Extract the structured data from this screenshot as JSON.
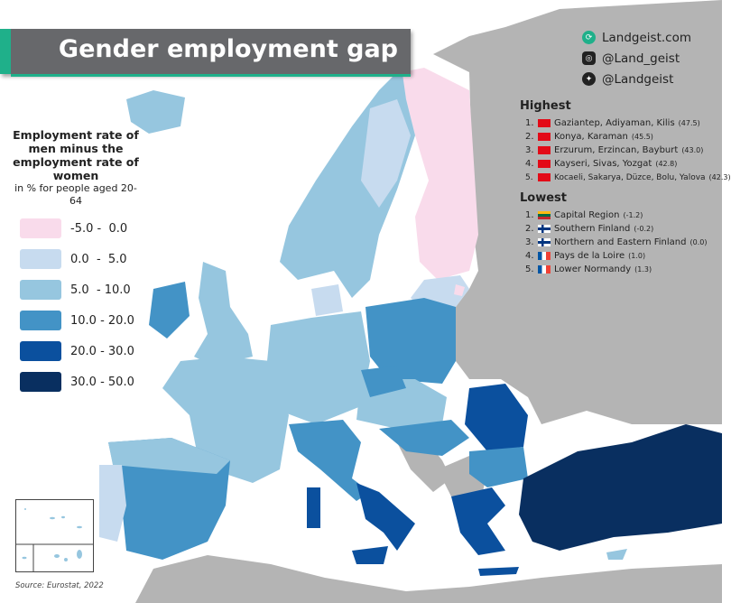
{
  "title": "Gender employment gap",
  "social": [
    {
      "icon": "globe-icon",
      "text": "Landgeist.com"
    },
    {
      "icon": "instagram-icon",
      "text": "@Land_geist"
    },
    {
      "icon": "twitter-icon",
      "text": "@Landgeist"
    }
  ],
  "legend": {
    "title": "Employment rate of men minus the employment rate of women",
    "subtitle": "in % for people aged 20-64",
    "items": [
      {
        "label": "-5.0 -  0.0",
        "color": "#f9dbeb"
      },
      {
        "label": "0.0  -  5.0",
        "color": "#c7dbef"
      },
      {
        "label": "5.0  - 10.0",
        "color": "#96c6df"
      },
      {
        "label": "10.0 - 20.0",
        "color": "#4393c6"
      },
      {
        "label": "20.0 - 30.0",
        "color": "#0b509e"
      },
      {
        "label": "30.0 - 50.0",
        "color": "#092f60"
      }
    ]
  },
  "no_data_color": "#b4b4b4",
  "highest": {
    "title": "Highest",
    "items": [
      {
        "rank": "1.",
        "flag": "turkey",
        "name": "Gaziantep, Adiyaman, Kilis",
        "value": "(47.5)"
      },
      {
        "rank": "2.",
        "flag": "turkey",
        "name": "Konya, Karaman",
        "value": "(45.5)"
      },
      {
        "rank": "3.",
        "flag": "turkey",
        "name": "Erzurum, Erzincan, Bayburt",
        "value": "(43.0)"
      },
      {
        "rank": "4.",
        "flag": "turkey",
        "name": "Kayseri, Sivas, Yozgat",
        "value": "(42.8)"
      },
      {
        "rank": "5.",
        "flag": "turkey",
        "name": "Kocaeli, Sakarya, Düzce, Bolu, Yalova",
        "value": "(42.3)"
      }
    ]
  },
  "lowest": {
    "title": "Lowest",
    "items": [
      {
        "rank": "1.",
        "flag": "lithuania",
        "name": "Capital Region",
        "value": "(-1.2)"
      },
      {
        "rank": "2.",
        "flag": "finland",
        "name": "Southern Finland",
        "value": "(-0.2)"
      },
      {
        "rank": "3.",
        "flag": "finland",
        "name": "Northern and Eastern Finland",
        "value": "(0.0)"
      },
      {
        "rank": "4.",
        "flag": "france",
        "name": "Pays de la Loire",
        "value": "(1.0)"
      },
      {
        "rank": "5.",
        "flag": "france",
        "name": "Lower Normandy",
        "value": "(1.3)"
      }
    ]
  },
  "source": "Source: Eurostat, 2022"
}
